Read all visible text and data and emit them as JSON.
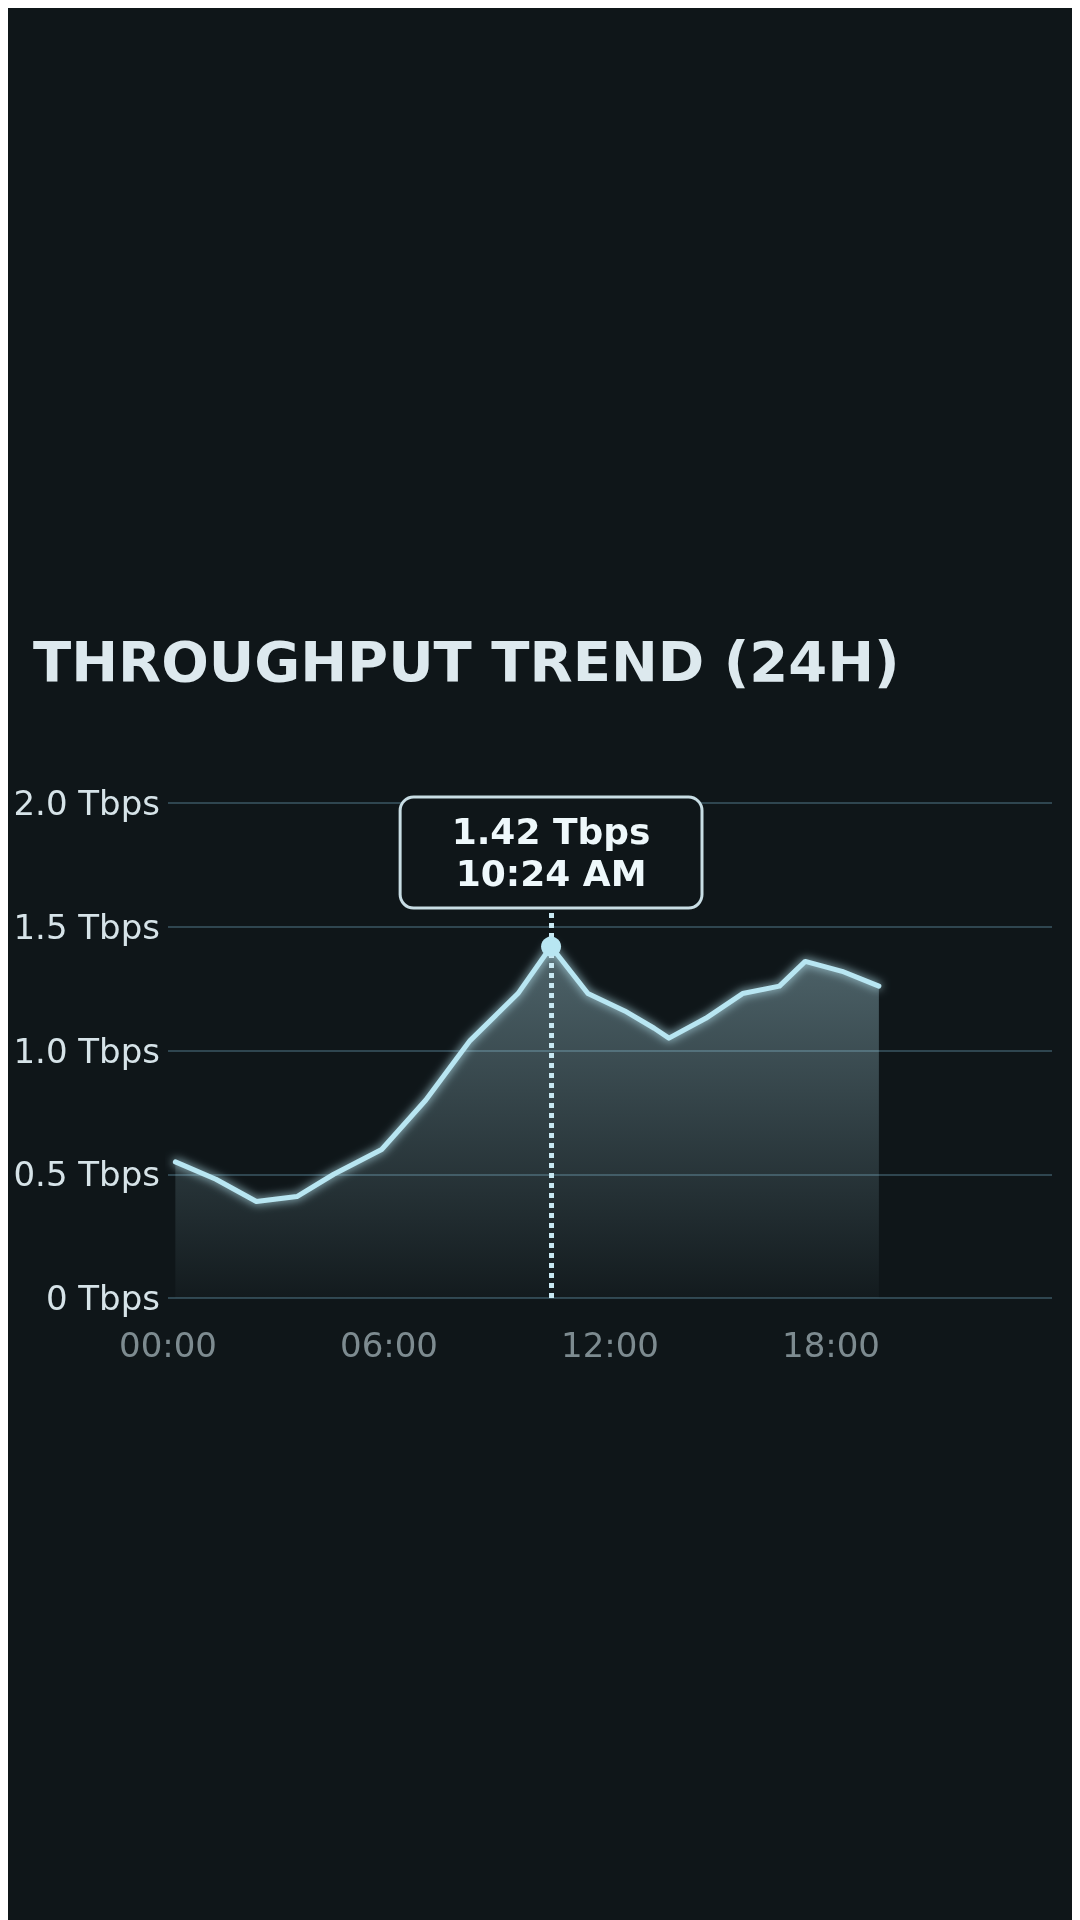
{
  "chart_data": {
    "type": "area",
    "title": "THROUGHPUT TREND (24H)",
    "x": [
      0.2,
      1.3,
      2.4,
      3.5,
      4.5,
      5.8,
      7.0,
      8.2,
      9.5,
      10.4,
      11.4,
      12.4,
      13.2,
      13.6,
      14.6,
      15.6,
      16.6,
      17.3,
      18.3,
      19.3
    ],
    "series": [
      {
        "color": "#b8e6f2",
        "values": [
          0.55,
          0.48,
          0.39,
          0.41,
          0.5,
          0.6,
          0.8,
          1.04,
          1.23,
          1.42,
          1.23,
          1.16,
          1.09,
          1.05,
          1.13,
          1.23,
          1.26,
          1.36,
          1.32,
          1.26
        ]
      }
    ],
    "xlim": [
      0,
      24
    ],
    "xticks": [
      {
        "value": 0,
        "label": "00:00"
      },
      {
        "value": 6,
        "label": "06:00"
      },
      {
        "value": 12,
        "label": "12:00"
      },
      {
        "value": 18,
        "label": "18:00"
      }
    ],
    "ylim": [
      0,
      2
    ],
    "yticks": [
      {
        "value": 0,
        "label": "0 Tbps"
      },
      {
        "value": 0.5,
        "label": "0.5 Tbps"
      },
      {
        "value": 1,
        "label": "1.0 Tbps"
      },
      {
        "value": 1.5,
        "label": "1.5 Tbps"
      },
      {
        "value": 2,
        "label": "2.0 Tbps"
      }
    ],
    "grid": "y",
    "marker": "none",
    "line_style": "solid",
    "ref_lines": [
      {
        "axis": "x",
        "value": 10.4,
        "line_style": "dotted",
        "color": "#c8e8f2"
      }
    ],
    "annotations": [
      {
        "text": "1.42 Tbps\n10:24 AM",
        "x": 10.4,
        "y": 1.42
      }
    ]
  }
}
